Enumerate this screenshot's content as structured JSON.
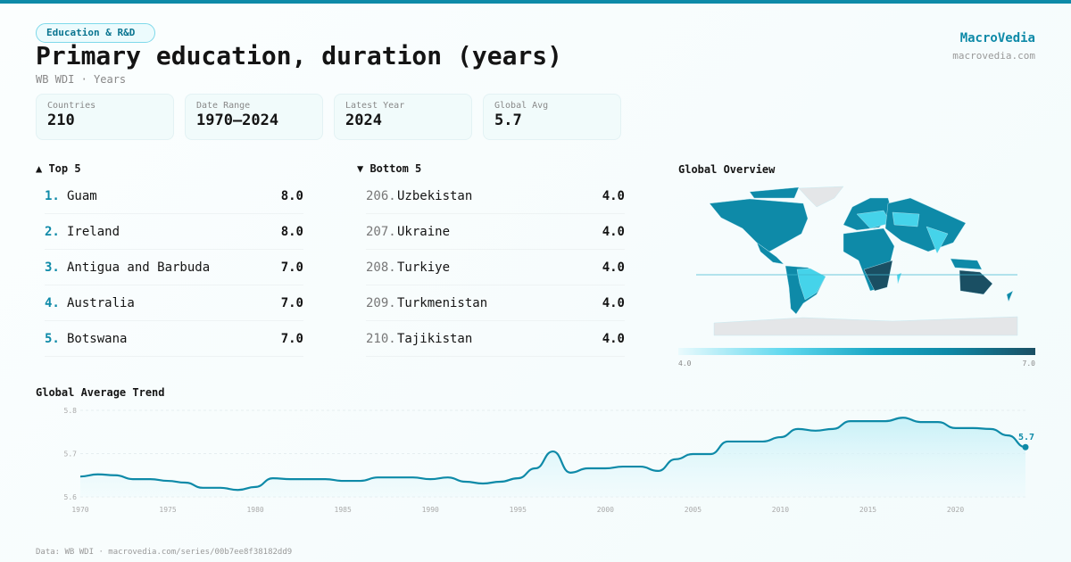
{
  "header": {
    "category": "Education & R&D",
    "title": "Primary education, duration (years)",
    "subtitle": "WB WDI · Years",
    "brand": "MacroVedia",
    "brand_url": "macrovedia.com"
  },
  "stats": [
    {
      "label": "Countries",
      "value": "210"
    },
    {
      "label": "Date Range",
      "value": "1970–2024"
    },
    {
      "label": "Latest Year",
      "value": "2024"
    },
    {
      "label": "Global Avg",
      "value": "5.7"
    }
  ],
  "top5": {
    "title": "▲ Top 5",
    "items": [
      {
        "rank": "1.",
        "name": "Guam",
        "value": "8.0"
      },
      {
        "rank": "2.",
        "name": "Ireland",
        "value": "8.0"
      },
      {
        "rank": "3.",
        "name": "Antigua and Barbuda",
        "value": "7.0"
      },
      {
        "rank": "4.",
        "name": "Australia",
        "value": "7.0"
      },
      {
        "rank": "5.",
        "name": "Botswana",
        "value": "7.0"
      }
    ]
  },
  "bottom5": {
    "title": "▼ Bottom 5",
    "items": [
      {
        "rank": "206.",
        "name": "Uzbekistan",
        "value": "4.0"
      },
      {
        "rank": "207.",
        "name": "Ukraine",
        "value": "4.0"
      },
      {
        "rank": "208.",
        "name": "Turkiye",
        "value": "4.0"
      },
      {
        "rank": "209.",
        "name": "Turkmenistan",
        "value": "4.0"
      },
      {
        "rank": "210.",
        "name": "Tajikistan",
        "value": "4.0"
      }
    ]
  },
  "map": {
    "title": "Global Overview",
    "legend_min": "4.0",
    "legend_max": "7.0",
    "colors": {
      "low": "#eafafd",
      "mid": "#0e8aa8",
      "high": "#1a4f63",
      "nodata": "#e4e6e8"
    }
  },
  "chart_data": {
    "type": "line",
    "title": "Global Average Trend",
    "ylim": [
      5.6,
      5.8
    ],
    "yticks": [
      "5.8",
      "5.7",
      "5.6"
    ],
    "xticks": [
      "1970",
      "1975",
      "1980",
      "1985",
      "1990",
      "1995",
      "2000",
      "2005",
      "2010",
      "2015",
      "2020"
    ],
    "last_label": "5.7",
    "color": "#0e8aa8",
    "x": [
      1970,
      1971,
      1972,
      1973,
      1974,
      1975,
      1976,
      1977,
      1978,
      1979,
      1980,
      1981,
      1982,
      1983,
      1984,
      1985,
      1986,
      1987,
      1988,
      1989,
      1990,
      1991,
      1992,
      1993,
      1994,
      1995,
      1996,
      1997,
      1998,
      1999,
      2000,
      2001,
      2002,
      2003,
      2004,
      2005,
      2006,
      2007,
      2008,
      2009,
      2010,
      2011,
      2012,
      2013,
      2014,
      2015,
      2016,
      2017,
      2018,
      2019,
      2020,
      2021,
      2022,
      2023,
      2024
    ],
    "values": [
      5.647,
      5.652,
      5.65,
      5.641,
      5.641,
      5.637,
      5.633,
      5.621,
      5.621,
      5.616,
      5.623,
      5.643,
      5.641,
      5.641,
      5.641,
      5.637,
      5.637,
      5.645,
      5.645,
      5.645,
      5.641,
      5.645,
      5.635,
      5.631,
      5.635,
      5.643,
      5.666,
      5.705,
      5.656,
      5.666,
      5.666,
      5.67,
      5.67,
      5.66,
      5.687,
      5.699,
      5.699,
      5.728,
      5.728,
      5.728,
      5.738,
      5.757,
      5.753,
      5.757,
      5.775,
      5.775,
      5.775,
      5.783,
      5.773,
      5.773,
      5.759,
      5.759,
      5.757,
      5.742,
      5.715
    ]
  },
  "footer": "Data: WB WDI · macrovedia.com/series/00b7ee8f38182dd9"
}
